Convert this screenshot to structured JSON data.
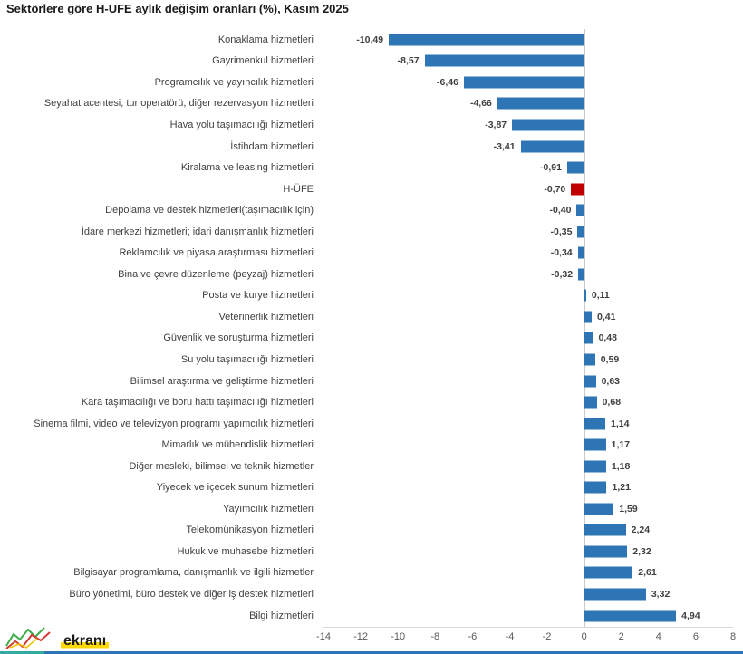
{
  "chart_data": {
    "type": "bar",
    "orientation": "horizontal",
    "title": "Sektörlere göre H-UFE aylık değişim oranları (%), Kasım 2025",
    "categories": [
      "Konaklama hizmetleri",
      "Gayrimenkul hizmetleri",
      "Programcılık ve yayıncılık hizmetleri",
      "Seyahat acentesi, tur operatörü, diğer rezervasyon hizmetleri",
      "Hava yolu taşımacılığı hizmetleri",
      "İstihdam hizmetleri",
      "Kiralama ve leasing hizmetleri",
      "H-ÜFE",
      "Depolama ve destek hizmetleri(taşımacılık için)",
      "İdare merkezi hizmetleri; idari danışmanlık hizmetleri",
      "Reklamcılık ve piyasa araştırması hizmetleri",
      "Bina ve çevre düzenleme (peyzaj) hizmetleri",
      "Posta ve kurye hizmetleri",
      "Veterinerlik hizmetleri",
      "Güvenlik ve soruşturma hizmetleri",
      "Su yolu taşımacılığı hizmetleri",
      "Bilimsel araştırma ve geliştirme hizmetleri",
      "Kara taşımacılığı ve boru hattı taşımacılığı hizmetleri",
      "Sinema filmi, video ve televizyon programı yapımcılık hizmetleri",
      "Mimarlık ve mühendislik hizmetleri",
      "Diğer mesleki, bilimsel ve teknik hizmetler",
      "Yiyecek ve içecek sunum hizmetleri",
      "Yayımcılık hizmetleri",
      "Telekomünikasyon hizmetleri",
      "Hukuk ve muhasebe hizmetleri",
      "Bilgisayar programlama, danışmanlık ve ilgili hizmetler",
      "Büro yönetimi, büro destek ve diğer iş destek hizmetleri",
      "Bilgi hizmetleri"
    ],
    "values": [
      -10.49,
      -8.57,
      -6.46,
      -4.66,
      -3.87,
      -3.41,
      -0.91,
      -0.7,
      -0.4,
      -0.35,
      -0.34,
      -0.32,
      0.11,
      0.41,
      0.48,
      0.59,
      0.63,
      0.68,
      1.14,
      1.17,
      1.18,
      1.21,
      1.59,
      2.24,
      2.32,
      2.61,
      3.32,
      4.94
    ],
    "highlight_index": 7,
    "bar_color": "#2E75B6",
    "highlight_color": "#C00000",
    "xlim": [
      -14,
      8
    ],
    "xticks": [
      -14,
      -12,
      -10,
      -8,
      -6,
      -4,
      -2,
      0,
      2,
      4,
      6,
      8
    ],
    "grid": false,
    "legend": "none",
    "value_label_format": "comma-decimal"
  },
  "watermark": {
    "text": "ekranı"
  }
}
